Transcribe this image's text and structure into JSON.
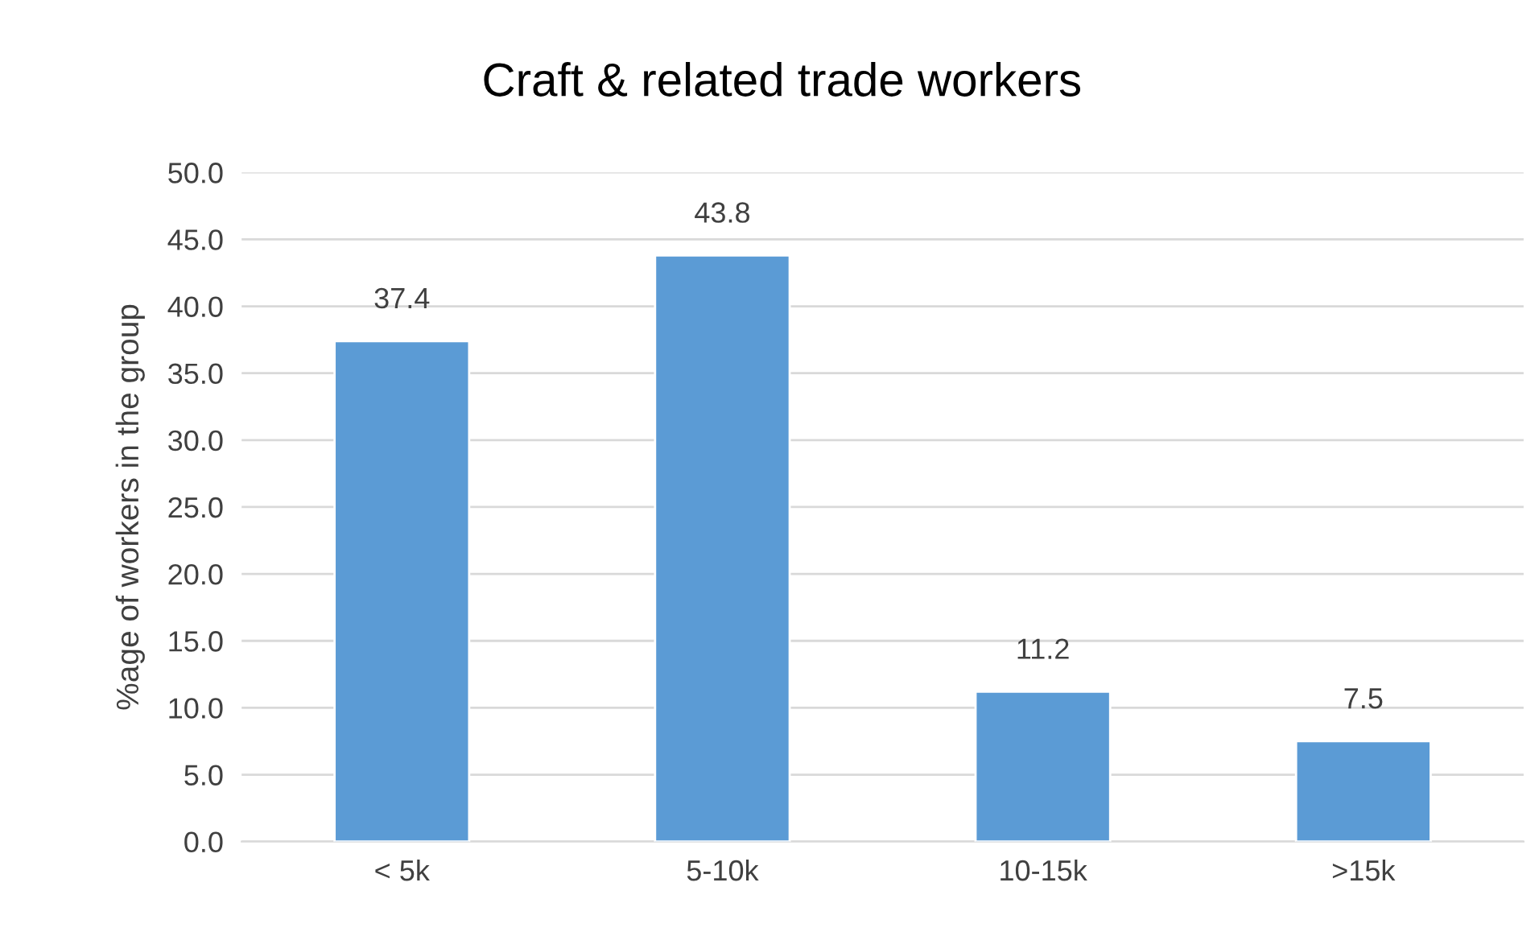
{
  "chart_data": {
    "type": "bar",
    "title": "Craft & related trade workers",
    "ylabel": "%age of workers in the group",
    "categories": [
      "< 5k",
      "5-10k",
      "10-15k",
      ">15k"
    ],
    "values": [
      37.4,
      43.8,
      11.2,
      7.5
    ],
    "color": "#5b9bd5",
    "ylim": [
      0,
      50
    ],
    "yticks": [
      {
        "value": 0,
        "label": "0.0"
      },
      {
        "value": 5,
        "label": "5.0"
      },
      {
        "value": 10,
        "label": "10.0"
      },
      {
        "value": 15,
        "label": "15.0"
      },
      {
        "value": 20,
        "label": "20.0"
      },
      {
        "value": 25,
        "label": "25.0"
      },
      {
        "value": 30,
        "label": "30.0"
      },
      {
        "value": 35,
        "label": "35.0"
      },
      {
        "value": 40,
        "label": "40.0"
      },
      {
        "value": 45,
        "label": "45.0"
      },
      {
        "value": 50,
        "label": "50.0"
      }
    ],
    "grid": "y",
    "data_labels": true
  }
}
